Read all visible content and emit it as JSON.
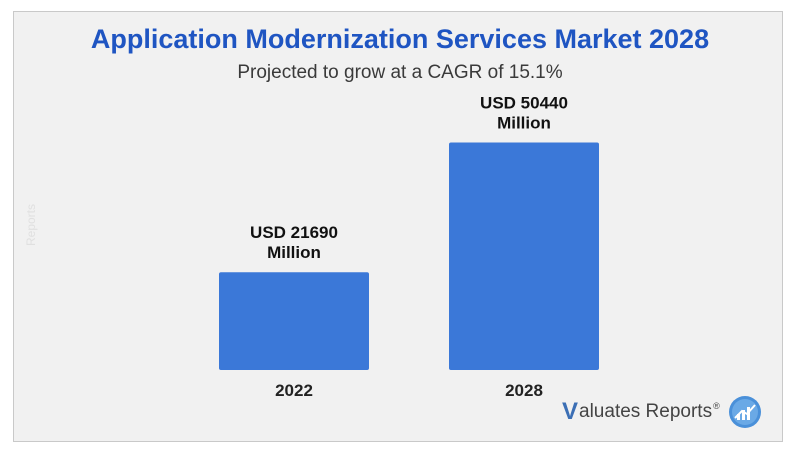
{
  "watermark": "Reports",
  "chart_data": {
    "type": "bar",
    "title": "Application Modernization Services Market 2028",
    "subtitle": "Projected to grow at a CAGR of 15.1%",
    "categories": [
      "2022",
      "2028"
    ],
    "values": [
      21690,
      50440
    ],
    "data_labels": [
      [
        "USD 21690",
        "Million"
      ],
      [
        "USD 50440",
        "Million"
      ]
    ],
    "units": "USD Million",
    "ylim": [
      0,
      55000
    ],
    "grid": false,
    "bar_color": "#3b78d8"
  },
  "logo": {
    "v": "V",
    "text": "aluates Reports",
    "reg": "®",
    "badge_color": "#4a90d9"
  }
}
